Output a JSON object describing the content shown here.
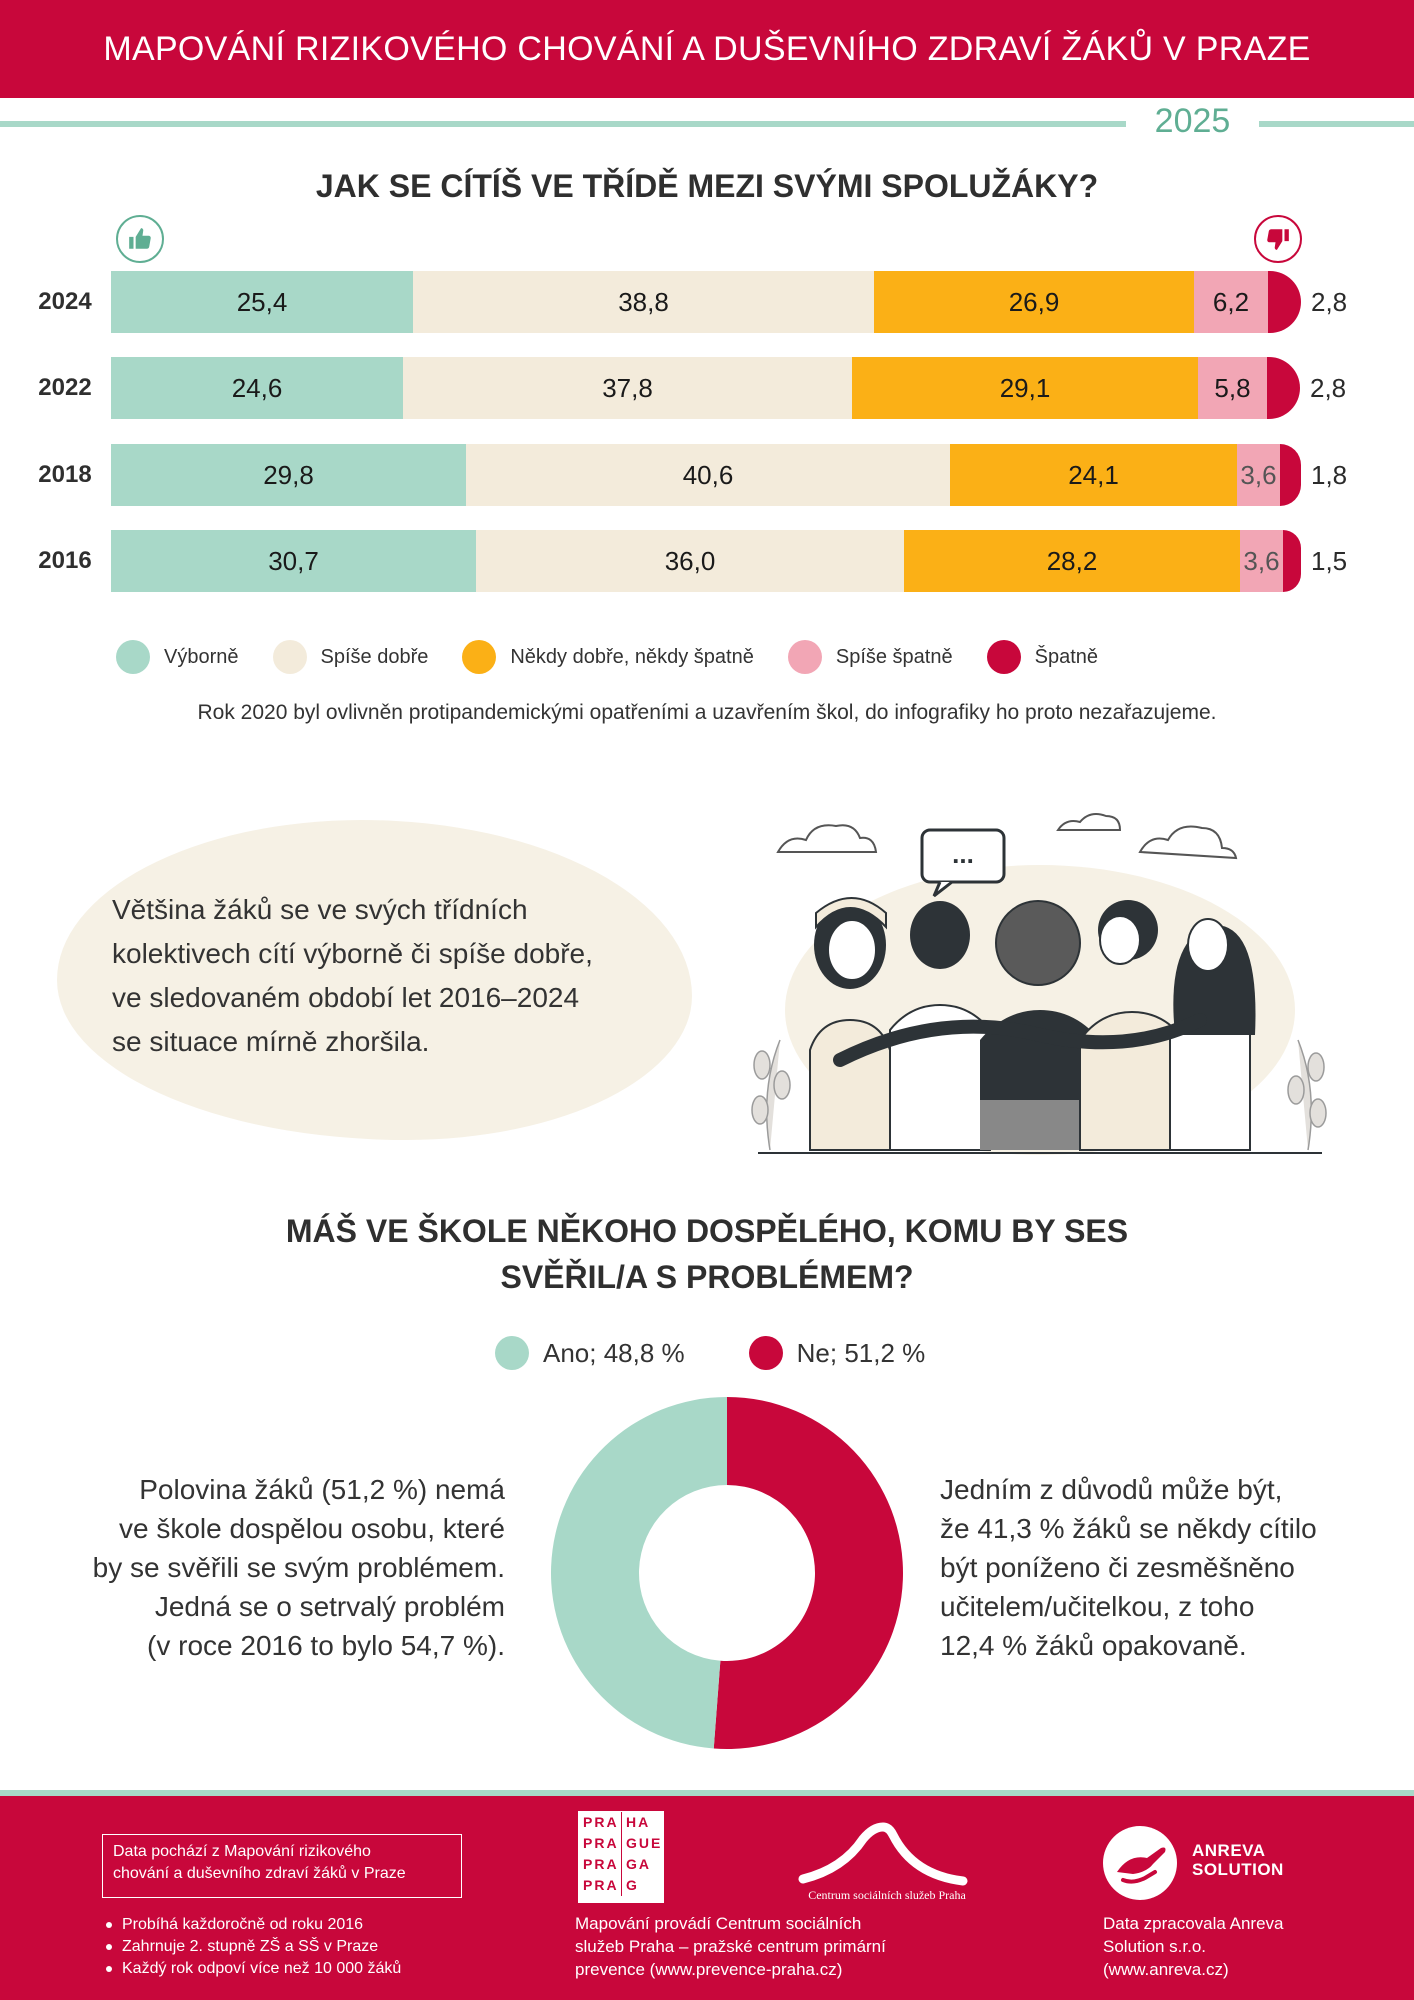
{
  "header": {
    "title": "MAPOVÁNÍ RIZIKOVÉHO CHOVÁNÍ A DUŠEVNÍHO ZDRAVÍ ŽÁKŮ V PRAZE",
    "year": "2025"
  },
  "section1": {
    "title": "JAK SE CÍTÍŠ VE TŘÍDĚ MEZI SVÝMI SPOLUŽÁKY?"
  },
  "chart_data": [
    {
      "type": "bar",
      "orientation": "horizontal-stacked-100",
      "title": "JAK SE CÍTÍŠ VE TŘÍDĚ MEZI SVÝMI SPOLUŽÁKY?",
      "categories": [
        "2024",
        "2022",
        "2018",
        "2016"
      ],
      "series": [
        {
          "name": "Výborně",
          "color": "#a8d8c8",
          "values": [
            25.4,
            24.6,
            29.8,
            30.7
          ],
          "labels": [
            "25,4",
            "24,6",
            "29,8",
            "30,7"
          ]
        },
        {
          "name": "Spíše dobře",
          "color": "#f3ebdb",
          "values": [
            38.8,
            37.8,
            40.6,
            36.0
          ],
          "labels": [
            "38,8",
            "37,8",
            "40,6",
            "36,0"
          ]
        },
        {
          "name": "Někdy dobře, někdy špatně",
          "color": "#fbb016",
          "values": [
            26.9,
            29.1,
            24.1,
            28.2
          ],
          "labels": [
            "26,9",
            "29,1",
            "24,1",
            "28,2"
          ]
        },
        {
          "name": "Spíše špatně",
          "color": "#f2a6b5",
          "values": [
            6.2,
            5.8,
            3.6,
            3.6
          ],
          "labels": [
            "6,2",
            "5,8",
            "3,6",
            "3,6"
          ]
        },
        {
          "name": "Špatně",
          "color": "#c8073b",
          "values": [
            2.8,
            2.8,
            1.8,
            1.5
          ],
          "labels": [
            "2,8",
            "2,8",
            "1,8",
            "1,5"
          ]
        }
      ],
      "legend_position": "bottom",
      "xlim": [
        0,
        100
      ],
      "grid": false
    },
    {
      "type": "pie",
      "variant": "donut",
      "title": "MÁŠ VE ŠKOLE NĚKOHO DOSPĚLÉHO, KOMU BY SES SVĚŘIL/A S PROBLÉMEM?",
      "slices": [
        {
          "name": "Ano",
          "value": 48.8,
          "label": "Ano; 48,8 %",
          "color": "#a8d8c8"
        },
        {
          "name": "Ne",
          "value": 51.2,
          "label": "Ne; 51,2 %",
          "color": "#c8073b"
        }
      ],
      "legend_position": "top"
    }
  ],
  "note": "Rok 2020 byl ovlivněn protipandemickými opatřeními a uzavřením škol, do infografiky ho proto nezařazujeme.",
  "summary": {
    "lines": [
      "Většina žáků se ve svých třídních",
      "kolektivech cítí výborně či spíše dobře,",
      "ve sledovaném období let 2016–2024",
      "se situace mírně zhoršila."
    ],
    "speech_bubble": "..."
  },
  "section2": {
    "title_line1": "MÁŠ VE ŠKOLE NĚKOHO DOSPĚLÉHO, KOMU BY SES",
    "title_line2": "SVĚŘIL/A S PROBLÉMEM?"
  },
  "left_text": [
    "Polovina žáků (51,2 %) nemá",
    "ve škole dospělou osobu, které",
    "by se svěřili se svým problémem.",
    "Jedná se o setrvalý problém",
    "(v roce 2016 to bylo 54,7 %)."
  ],
  "right_text": [
    "Jedním z důvodů může být,",
    "že 41,3 % žáků se někdy cítilo",
    "být poníženo či zesměšněno",
    "učitelem/učitelkou, z toho",
    "12,4 % žáků opakovaně."
  ],
  "footer": {
    "data_box_lines": [
      "Data pochází z Mapování rizikového",
      "chování a duševního zdraví žáků v Praze"
    ],
    "bullets": [
      "Probíhá každoročně od roku 2016",
      "Zahrnuje 2. stupně ZŠ a SŠ v Praze",
      "Každý rok odpoví více než 10 000 žáků"
    ],
    "praha_logo": {
      "left": [
        "PRA",
        "PRA",
        "PRA",
        "PRA"
      ],
      "right": [
        "HA",
        "GUE",
        "GA",
        "G"
      ]
    },
    "center_lines": [
      "Mapování provádí Centrum sociálních",
      "služeb Praha – pražské centrum primární",
      "prevence (www.prevence-praha.cz)"
    ],
    "cssp_caption": "Centrum sociálních služeb Praha",
    "anreva_name": [
      "ANREVA",
      "SOLUTION"
    ],
    "right_lines": [
      "Data zpracovala Anreva",
      "Solution s.r.o.",
      "(www.anreva.cz)"
    ]
  },
  "icons": {
    "positive": "thumbs-up-icon",
    "negative": "thumbs-down-icon"
  },
  "colors": {
    "brand_red": "#c8073b",
    "mint": "#a8d8c8",
    "beige": "#f3ebdb",
    "amber": "#fbb016",
    "pink": "#f2a6b5"
  }
}
